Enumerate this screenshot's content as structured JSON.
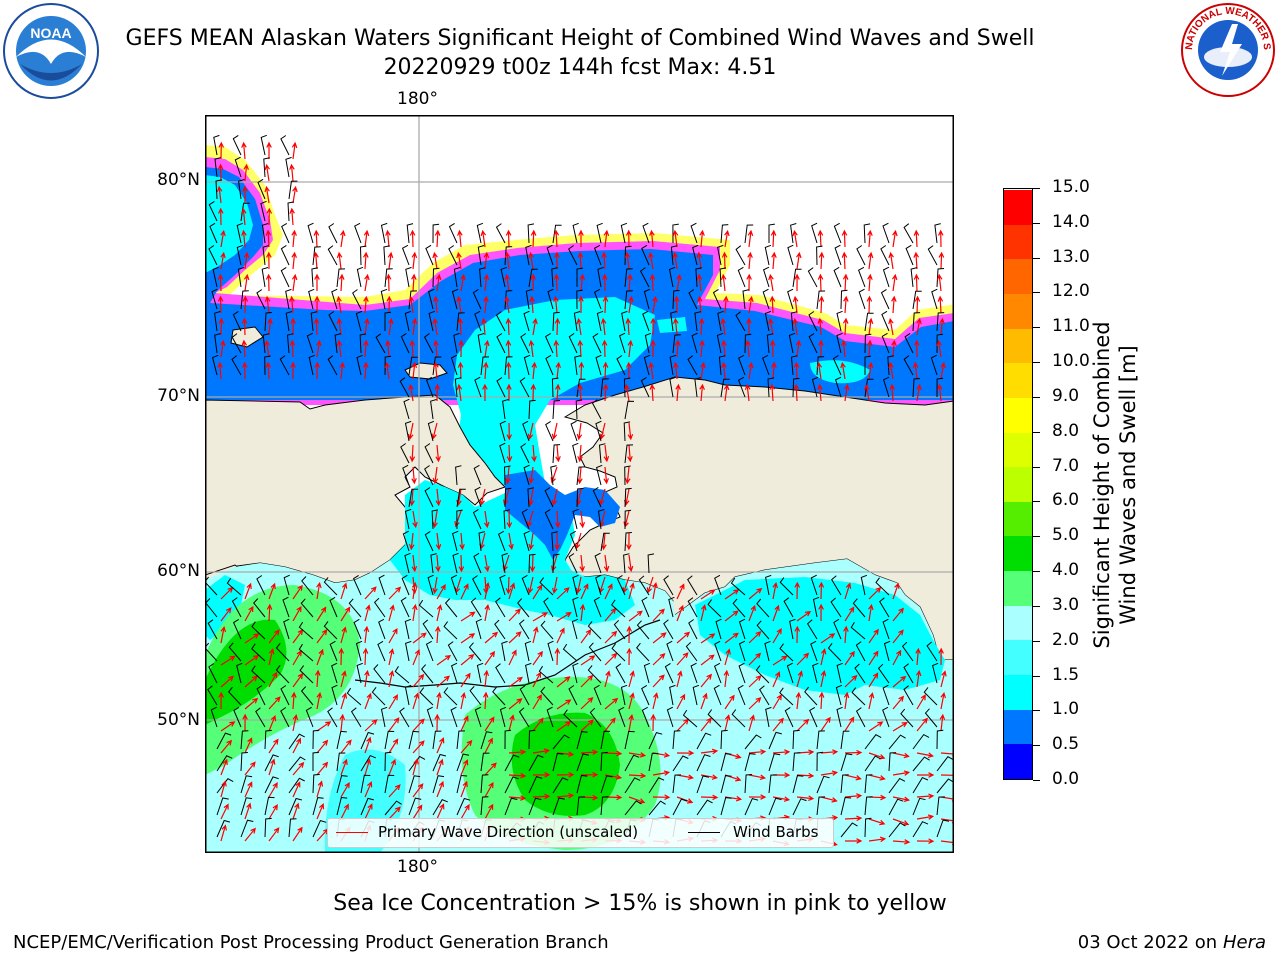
{
  "header": {
    "title_line1": "GEFS MEAN Alaskan Waters Significant Height of Combined Wind Waves and Swell",
    "title_line2": "20220929 t00z 144h fcst   Max: 4.51",
    "left_logo_text": "NOAA",
    "left_logo_ring_text": "NATIONAL OCEANIC AND ATMOSPHERIC ADMINISTRATION · U.S. DEPARTMENT OF COMMERCE",
    "right_logo_ring_text": "NATIONAL WEATHER SERVICE"
  },
  "map": {
    "lon_labels_top": [
      "180°"
    ],
    "lon_labels_bottom": [
      "180°"
    ],
    "lat_labels": [
      "80°N",
      "70°N",
      "60°N",
      "50°N"
    ],
    "land_color": "#efecdc",
    "ice_colors": [
      "#ff55ff",
      "#ffbb55",
      "#ffff66"
    ],
    "legend": {
      "wave_direction_label": "Primary Wave Direction (unscaled)",
      "wind_barbs_label": "Wind Barbs",
      "wave_direction_color": "#ff0000",
      "wind_barbs_color": "#000000"
    }
  },
  "colorbar": {
    "label_line1": "Significant Height of Combined",
    "label_line2": "Wind Waves and Swell [m]",
    "ticks": [
      "0.0",
      "0.5",
      "1.0",
      "1.5",
      "2.0",
      "3.0",
      "4.0",
      "5.0",
      "6.0",
      "7.0",
      "8.0",
      "9.0",
      "10.0",
      "11.0",
      "12.0",
      "13.0",
      "14.0",
      "15.0"
    ],
    "colors": [
      "#0000ff",
      "#0077ff",
      "#00ffff",
      "#44ffff",
      "#aaffff",
      "#55ff77",
      "#00dd00",
      "#55ee00",
      "#bbff00",
      "#ddff00",
      "#ffff00",
      "#ffdd00",
      "#ffbb00",
      "#ff8800",
      "#ff6600",
      "#ff3300",
      "#ff0000"
    ]
  },
  "footer": {
    "note": "Sea Ice Concentration > 15% is shown in pink to yellow",
    "left": "NCEP/EMC/Verification Post Processing Product Generation Branch",
    "right_date": "03 Oct 2022 on ",
    "right_machine": "Hera"
  }
}
